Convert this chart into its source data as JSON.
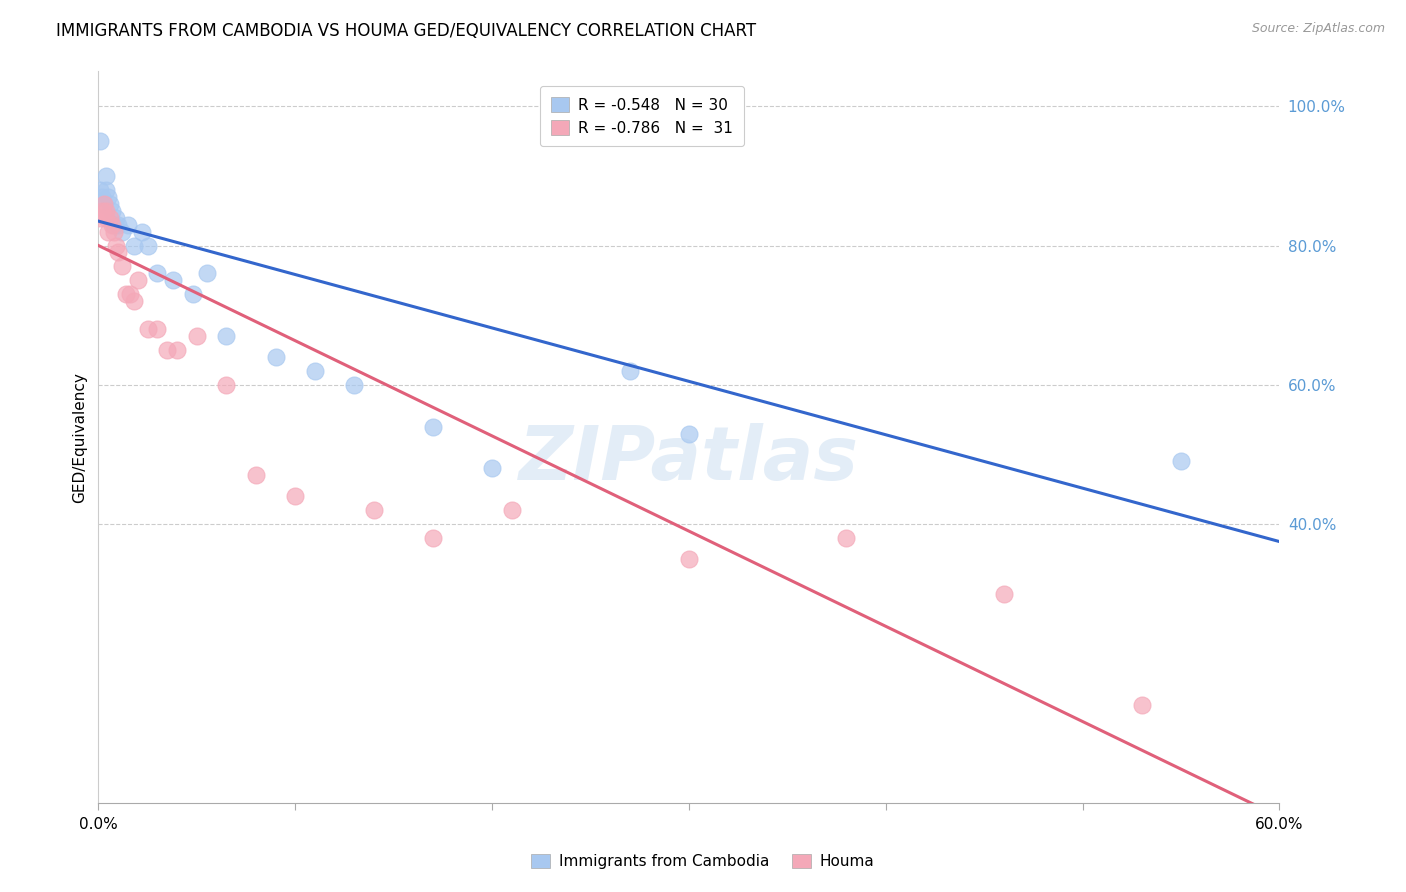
{
  "title": "IMMIGRANTS FROM CAMBODIA VS HOUMA GED/EQUIVALENCY CORRELATION CHART",
  "source": "Source: ZipAtlas.com",
  "ylabel": "GED/Equivalency",
  "xmin": 0.0,
  "xmax": 0.6,
  "ymin": 0.0,
  "ymax": 1.05,
  "yticks": [
    0.4,
    0.6,
    0.8,
    1.0
  ],
  "ytick_labels": [
    "40.0%",
    "60.0%",
    "80.0%",
    "100.0%"
  ],
  "xticks": [
    0.0,
    0.1,
    0.2,
    0.3,
    0.4,
    0.5,
    0.6
  ],
  "xtick_labels": [
    "0.0%",
    "",
    "",
    "",
    "",
    "",
    "60.0%"
  ],
  "blue_R": -0.548,
  "blue_N": 30,
  "pink_R": -0.786,
  "pink_N": 31,
  "blue_series_label": "Immigrants from Cambodia",
  "pink_series_label": "Houma",
  "blue_color": "#A8C8F0",
  "pink_color": "#F4A8B8",
  "blue_line_color": "#3366CC",
  "pink_line_color": "#E0607A",
  "watermark": "ZIPatlas",
  "blue_line_x0": 0.0,
  "blue_line_y0": 0.835,
  "blue_line_x1": 0.6,
  "blue_line_y1": 0.375,
  "pink_line_x0": 0.0,
  "pink_line_y0": 0.8,
  "pink_line_x1": 0.6,
  "pink_line_y1": -0.02,
  "blue_points_x": [
    0.001,
    0.001,
    0.002,
    0.003,
    0.004,
    0.004,
    0.005,
    0.006,
    0.007,
    0.008,
    0.009,
    0.01,
    0.012,
    0.015,
    0.018,
    0.022,
    0.025,
    0.03,
    0.038,
    0.048,
    0.055,
    0.065,
    0.09,
    0.11,
    0.13,
    0.17,
    0.2,
    0.27,
    0.3,
    0.55
  ],
  "blue_points_y": [
    0.95,
    0.88,
    0.87,
    0.86,
    0.9,
    0.88,
    0.87,
    0.86,
    0.85,
    0.83,
    0.84,
    0.83,
    0.82,
    0.83,
    0.8,
    0.82,
    0.8,
    0.76,
    0.75,
    0.73,
    0.76,
    0.67,
    0.64,
    0.62,
    0.6,
    0.54,
    0.48,
    0.62,
    0.53,
    0.49
  ],
  "pink_points_x": [
    0.001,
    0.002,
    0.003,
    0.004,
    0.004,
    0.005,
    0.006,
    0.007,
    0.008,
    0.009,
    0.01,
    0.012,
    0.014,
    0.016,
    0.018,
    0.02,
    0.025,
    0.03,
    0.035,
    0.04,
    0.05,
    0.065,
    0.08,
    0.1,
    0.14,
    0.17,
    0.21,
    0.3,
    0.38,
    0.46,
    0.53
  ],
  "pink_points_y": [
    0.84,
    0.85,
    0.86,
    0.85,
    0.84,
    0.82,
    0.84,
    0.83,
    0.82,
    0.8,
    0.79,
    0.77,
    0.73,
    0.73,
    0.72,
    0.75,
    0.68,
    0.68,
    0.65,
    0.65,
    0.67,
    0.6,
    0.47,
    0.44,
    0.42,
    0.38,
    0.42,
    0.35,
    0.38,
    0.3,
    0.14
  ]
}
